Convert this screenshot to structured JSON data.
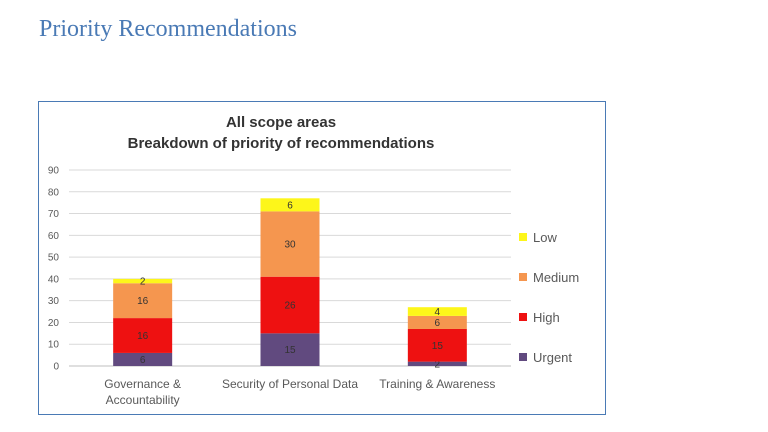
{
  "page": {
    "title": "Priority Recommendations"
  },
  "chart_data": {
    "type": "bar",
    "stacked": true,
    "title_lines": [
      "All scope areas",
      "Breakdown of priority of recommendations"
    ],
    "categories": [
      [
        "Governance &",
        "Accountability"
      ],
      [
        "Security of Personal Data"
      ],
      [
        "Training & Awareness"
      ]
    ],
    "series": [
      {
        "name": "Urgent",
        "color": "#614a7f",
        "values": [
          6,
          15,
          2
        ]
      },
      {
        "name": "High",
        "color": "#ee1111",
        "values": [
          16,
          26,
          15
        ]
      },
      {
        "name": "Medium",
        "color": "#f5964f",
        "values": [
          16,
          30,
          6
        ]
      },
      {
        "name": "Low",
        "color": "#fdf61a",
        "values": [
          2,
          6,
          4
        ]
      }
    ],
    "ylim": [
      0,
      90
    ],
    "yticks": [
      0,
      10,
      20,
      30,
      40,
      50,
      60,
      70,
      80,
      90
    ],
    "grid": true,
    "legend_position": "right",
    "legend_order": [
      "Low",
      "Medium",
      "High",
      "Urgent"
    ]
  }
}
